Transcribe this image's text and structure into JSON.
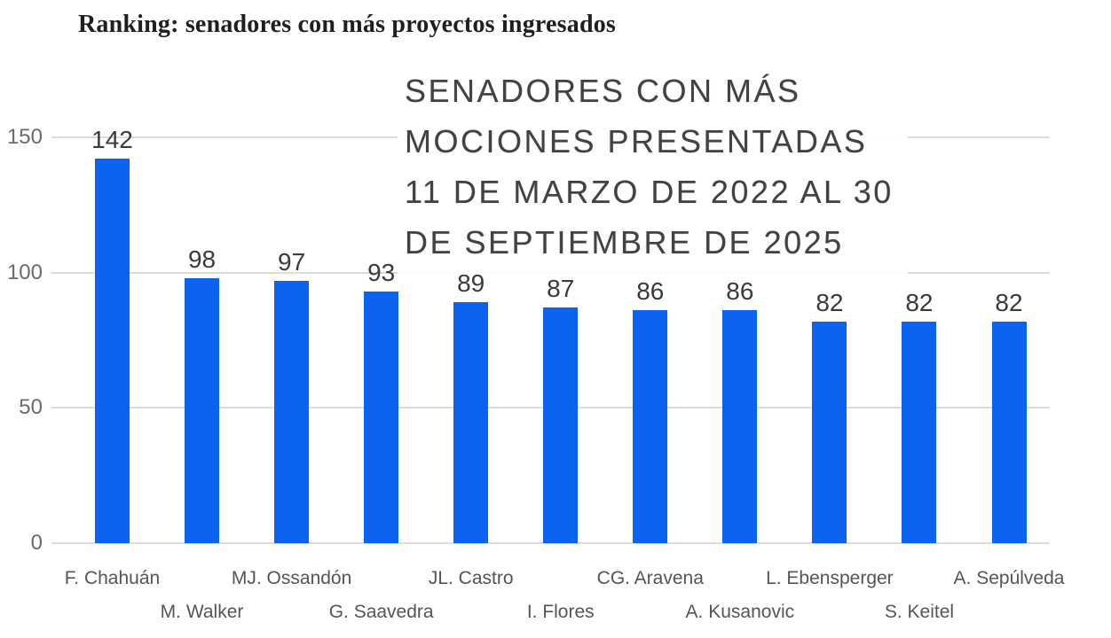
{
  "page": {
    "title": "Ranking: senadores con más proyectos ingresados"
  },
  "overlay_title": {
    "lines": [
      "SENADORES CON MÁS",
      "MOCIONES PRESENTADAS",
      "11 DE MARZO DE 2022 AL 30",
      "DE SEPTIEMBRE DE 2025"
    ]
  },
  "chart_data": {
    "type": "bar",
    "title": "SENADORES CON MÁS MOCIONES PRESENTADAS 11 DE MARZO DE 2022 AL 30 DE SEPTIEMBRE DE 2025",
    "categories": [
      "F. Chahuán",
      "M. Walker",
      "MJ. Ossandón",
      "G. Saavedra",
      "JL. Castro",
      "I. Flores",
      "CG. Aravena",
      "A. Kusanovic",
      "L. Ebensperger",
      "S. Keitel",
      "A. Sepúlveda"
    ],
    "values": [
      142,
      98,
      97,
      93,
      89,
      87,
      86,
      86,
      82,
      82,
      82
    ],
    "xlabel": "",
    "ylabel": "",
    "ylim": [
      0,
      150
    ],
    "yticks": [
      0,
      50,
      100,
      150
    ],
    "grid": true,
    "legend": false,
    "value_labels_shown": true,
    "x_labels_staggered": true
  },
  "colors": {
    "bar": "#0a64f0",
    "grid": "#dcdcdc",
    "y_tick_text": "#6b6b6b",
    "x_tick_text": "#555555",
    "value_text": "#3a3a3a",
    "page_title_text": "#1f1f1f",
    "overlay_text": "#424242",
    "background": "#ffffff"
  }
}
